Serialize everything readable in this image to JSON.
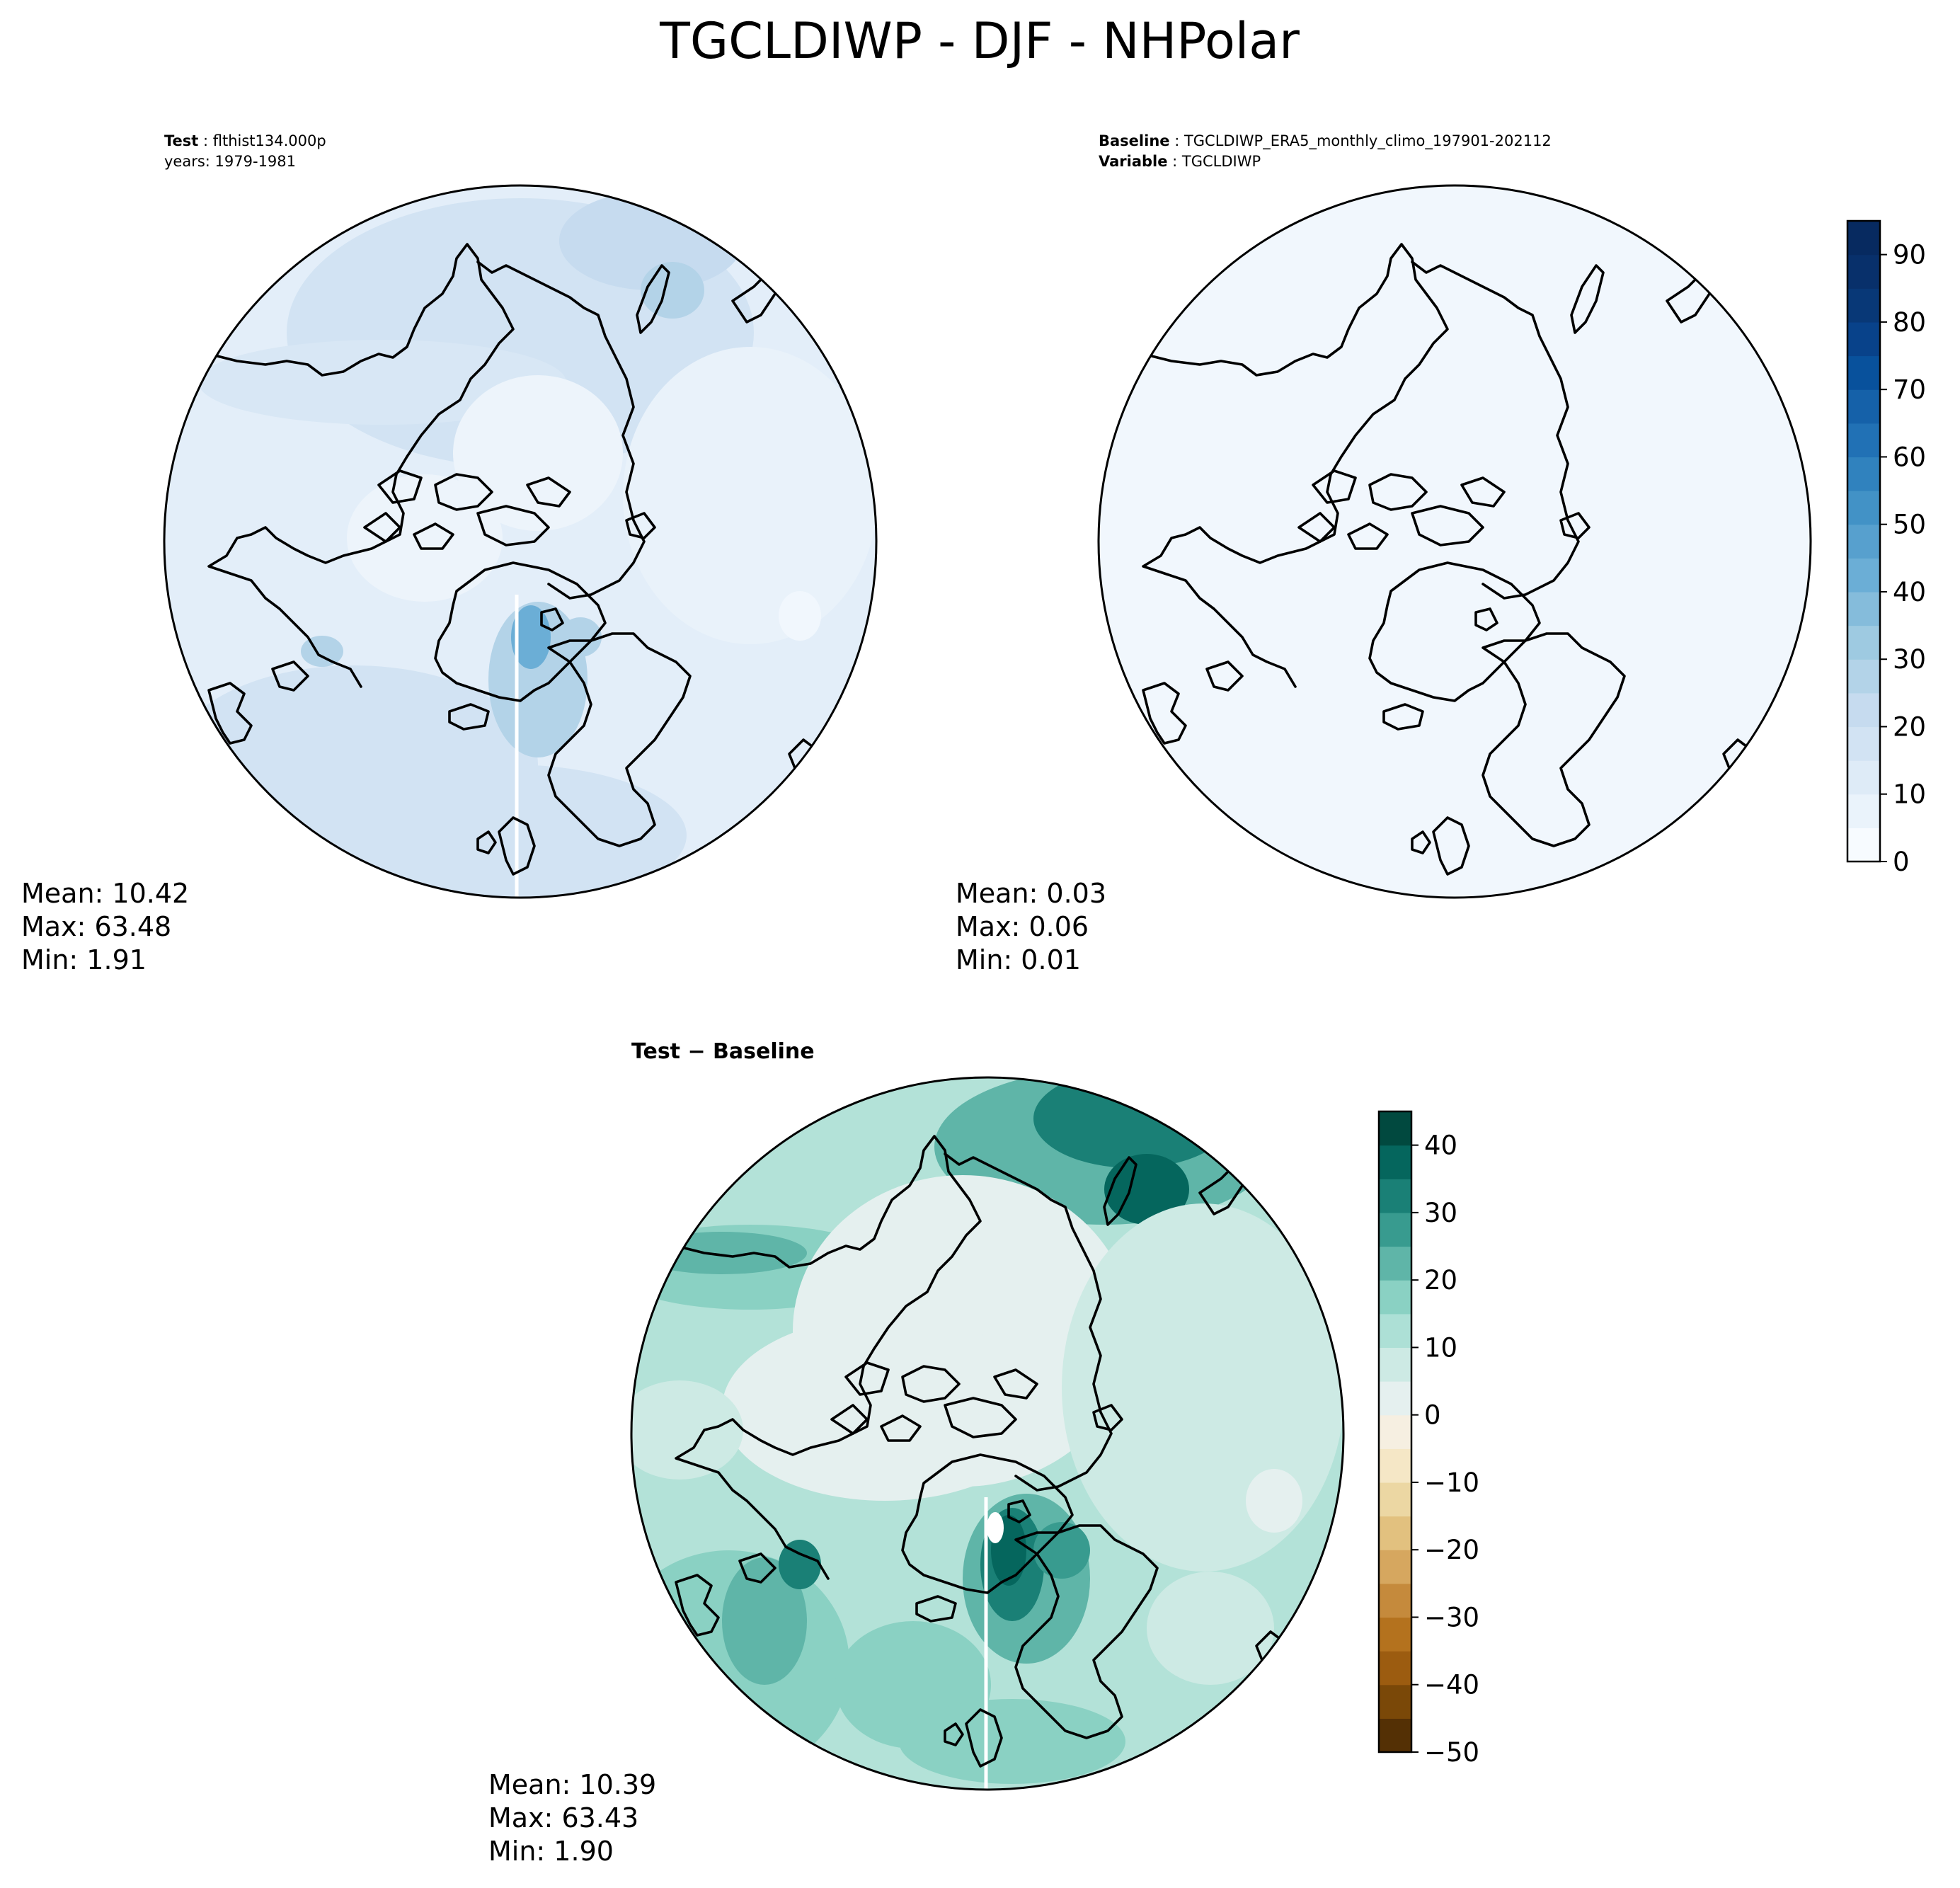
{
  "title": "TGCLDIWP - DJF - NHPolar",
  "panels": {
    "test": {
      "header_label": "Test",
      "header_value": "flthist134.000p",
      "header_line2": "years: 1979-1981",
      "stats": {
        "mean": "Mean: 10.42",
        "max": "Max: 63.48",
        "min": "Min:  1.91"
      }
    },
    "baseline": {
      "header_label": "Baseline",
      "header_value": "TGCLDIWP_ERA5_monthly_climo_197901-202112",
      "header_label2": "Variable",
      "header_value2": "TGCLDIWP",
      "stats": {
        "mean": "Mean:  0.03",
        "max": "Max:  0.06",
        "min": "Min:  0.01"
      }
    },
    "diff": {
      "header_label": "Test − Baseline",
      "stats": {
        "mean": "Mean: 10.39",
        "max": "Max: 63.43",
        "min": "Min:  1.90"
      }
    }
  },
  "colorbars": {
    "blues": {
      "ticks": [
        "0",
        "10",
        "20",
        "30",
        "40",
        "50",
        "60",
        "70",
        "80",
        "90"
      ],
      "range": [
        0,
        95
      ],
      "colors": [
        "#f7fbff",
        "#eaf3fb",
        "#deebf7",
        "#d2e3f3",
        "#c6dbef",
        "#b3d3e8",
        "#9ecae1",
        "#85bcdb",
        "#6baed6",
        "#57a0ce",
        "#4292c6",
        "#3082be",
        "#2171b5",
        "#1561a9",
        "#08519c",
        "#08428a",
        "#083877",
        "#08306b",
        "#072a60"
      ]
    },
    "brbg": {
      "ticks": [
        "40",
        "30",
        "20",
        "10",
        "0",
        "−10",
        "−20",
        "−30",
        "−40",
        "−50"
      ],
      "range": [
        -50,
        45
      ],
      "colors": [
        "#543005",
        "#7a4808",
        "#9c5c10",
        "#b4721e",
        "#c58a3c",
        "#d6a75f",
        "#e2c17f",
        "#ecd7a3",
        "#f5e7c6",
        "#f6efe1",
        "#e5f0ef",
        "#cdeae4",
        "#ade0d6",
        "#8ad1c3",
        "#5fb5a8",
        "#389b8f",
        "#1a8076",
        "#05665d",
        "#01493f"
      ]
    }
  },
  "map_colors": {
    "test_base": "#e3eef9",
    "baseline_base": "#f1f7fd",
    "diff_base": "#b3e2d8",
    "coastline": "#000000"
  }
}
